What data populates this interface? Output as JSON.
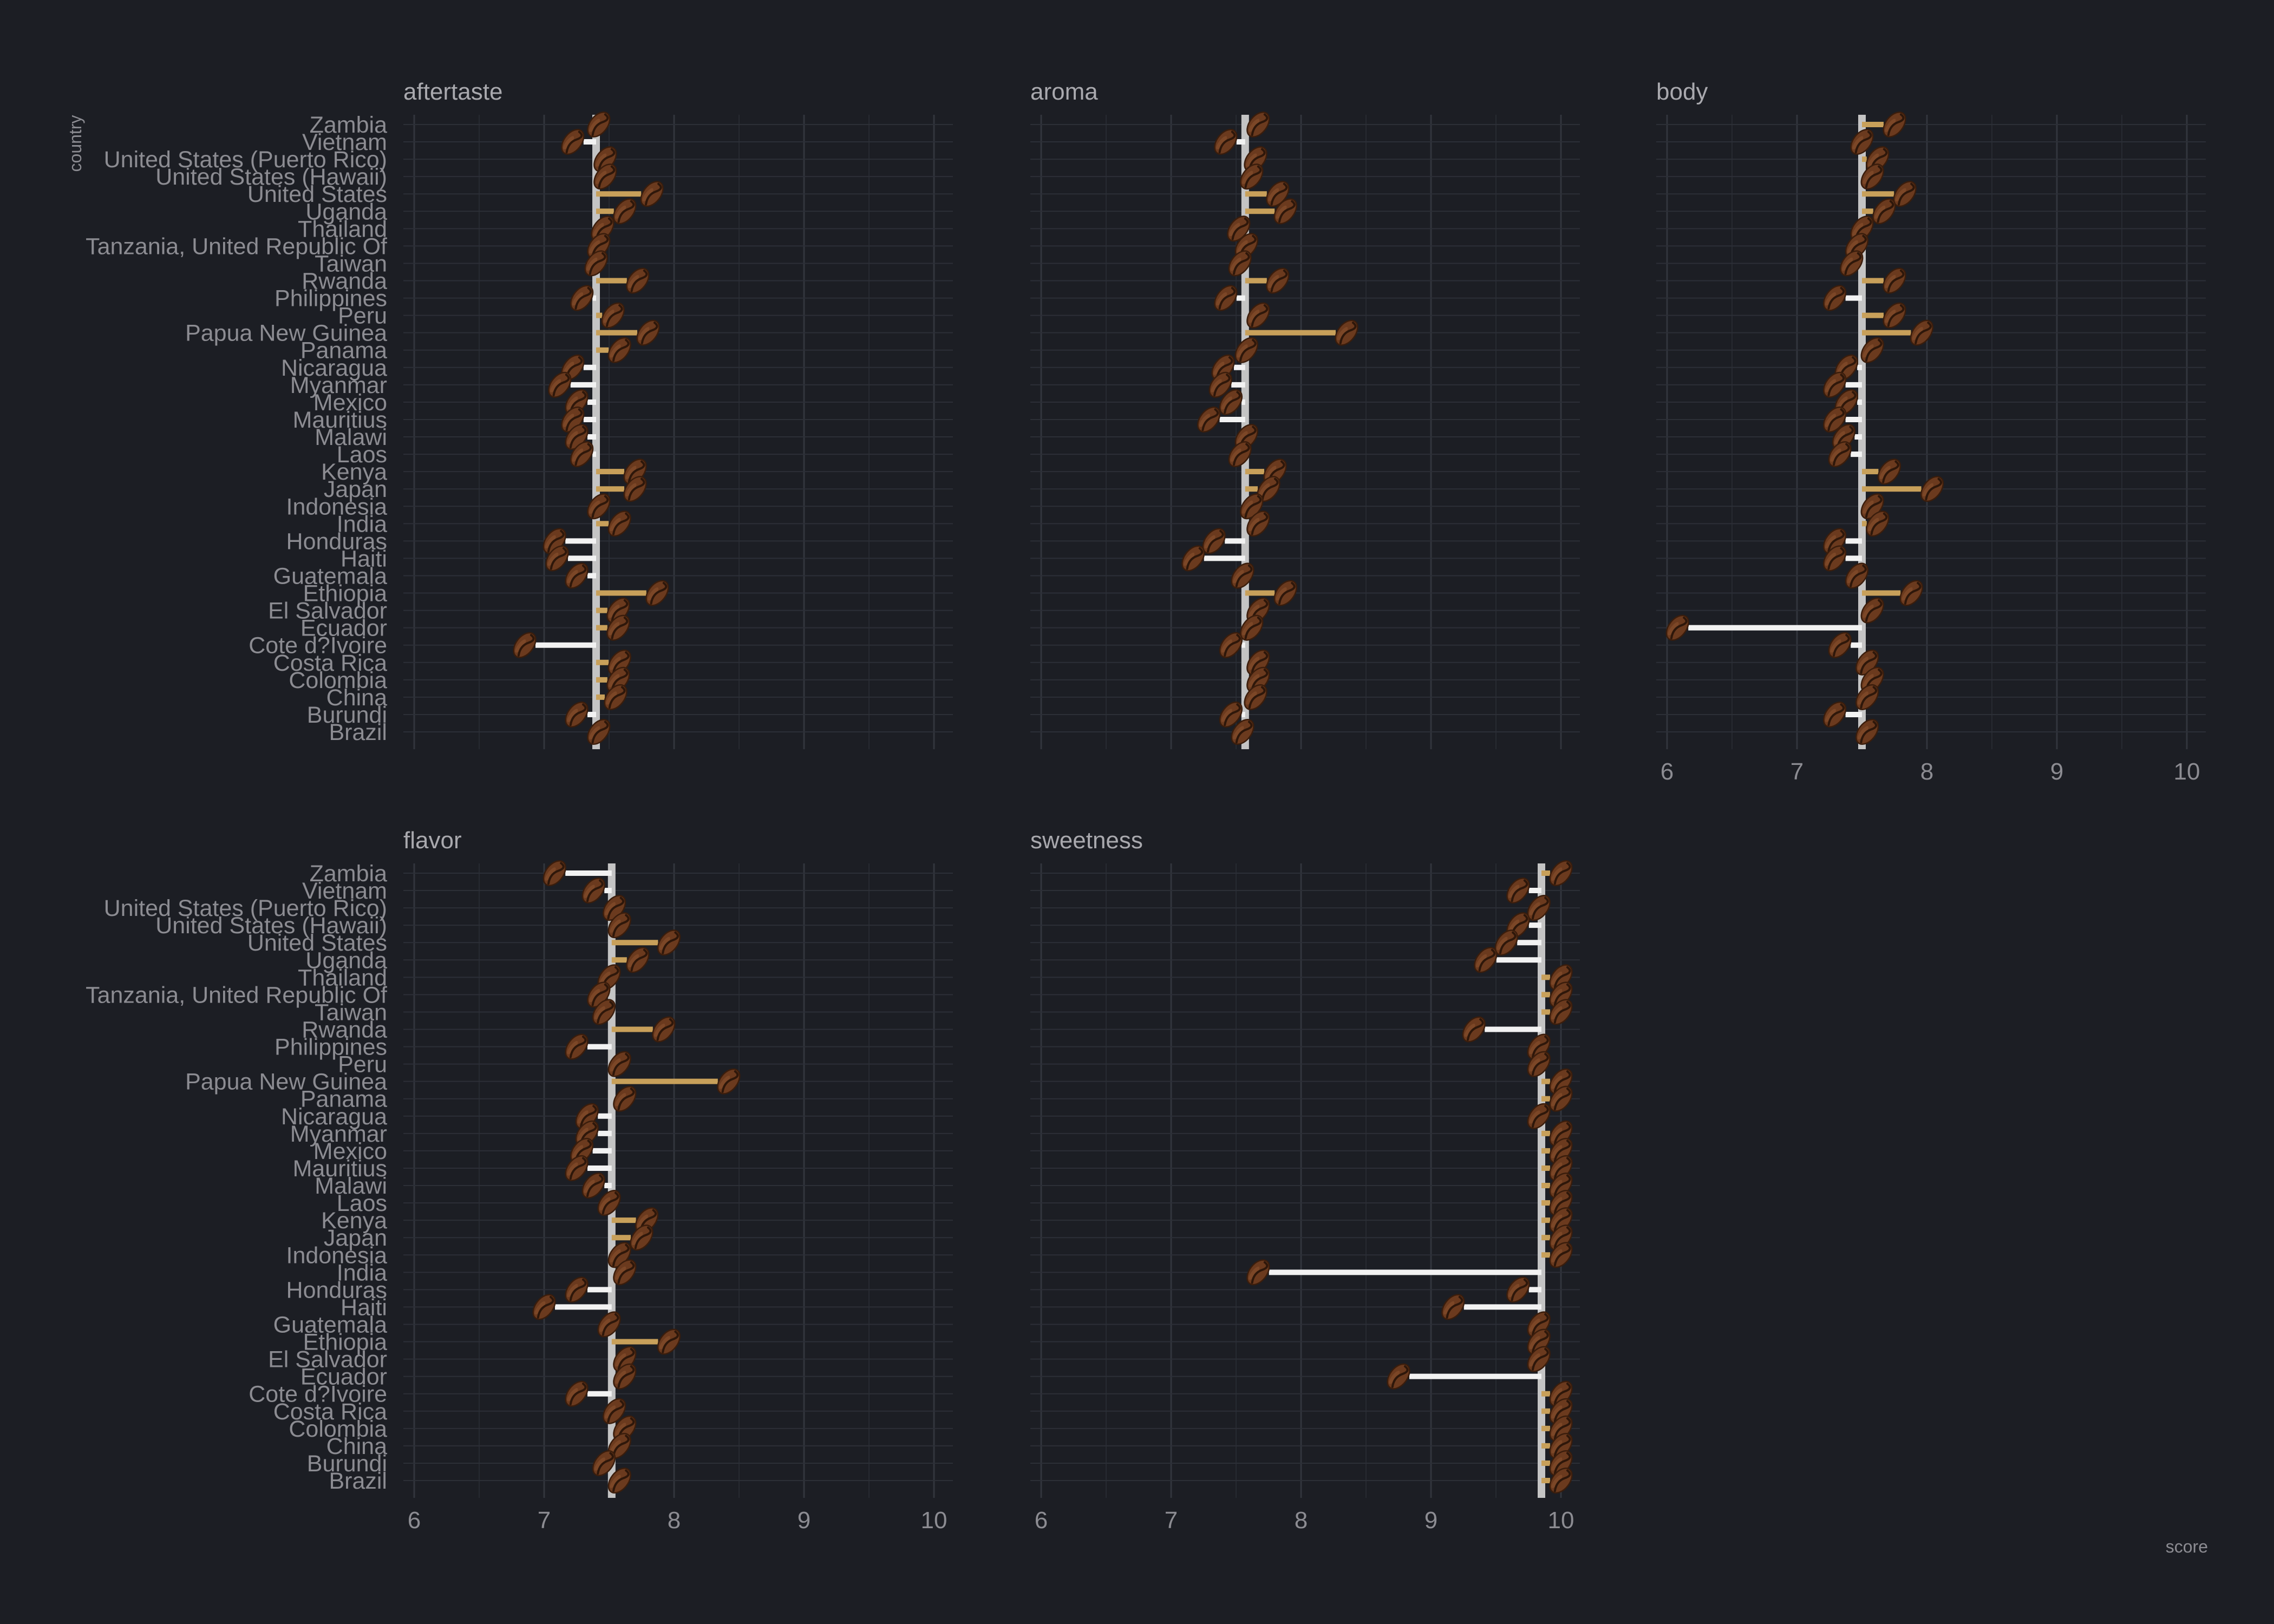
{
  "chart_data": {
    "type": "lollipop-facet",
    "xlabel": "score",
    "ylabel": "country",
    "xlim": [
      6,
      10
    ],
    "x_ticks": [
      6,
      7,
      8,
      9,
      10
    ],
    "grid": true,
    "countries": [
      "Zambia",
      "Vietnam",
      "United States (Puerto Rico)",
      "United States (Hawaii)",
      "United States",
      "Uganda",
      "Thailand",
      "Tanzania, United Republic Of",
      "Taiwan",
      "Rwanda",
      "Philippines",
      "Peru",
      "Papua New Guinea",
      "Panama",
      "Nicaragua",
      "Myanmar",
      "Mexico",
      "Mauritius",
      "Malawi",
      "Laos",
      "Kenya",
      "Japan",
      "Indonesia",
      "India",
      "Honduras",
      "Haiti",
      "Guatemala",
      "Ethiopia",
      "El Salvador",
      "Ecuador",
      "Cote d?Ivoire",
      "Costa Rica",
      "Colombia",
      "China",
      "Burundi",
      "Brazil"
    ],
    "colors": {
      "background": "#1c1e24",
      "above_mean": "#c8a05a",
      "below_mean": "#f2f2f2",
      "mean_line": "#c4c4c4",
      "bean_body": "#6b3a1e",
      "bean_crease": "#2e170a"
    },
    "panels": [
      {
        "name": "aftertaste",
        "mean": 7.4,
        "values": [
          7.42,
          7.22,
          7.47,
          7.47,
          7.83,
          7.62,
          7.45,
          7.42,
          7.4,
          7.72,
          7.29,
          7.53,
          7.8,
          7.58,
          7.22,
          7.12,
          7.25,
          7.22,
          7.25,
          7.29,
          7.7,
          7.7,
          7.42,
          7.58,
          7.08,
          7.1,
          7.25,
          7.87,
          7.57,
          7.57,
          6.85,
          7.58,
          7.57,
          7.55,
          7.25,
          7.42
        ]
      },
      {
        "name": "aroma",
        "mean": 7.57,
        "values": [
          7.67,
          7.42,
          7.65,
          7.62,
          7.82,
          7.88,
          7.52,
          7.58,
          7.53,
          7.82,
          7.42,
          7.67,
          8.35,
          7.58,
          7.4,
          7.38,
          7.46,
          7.29,
          7.58,
          7.53,
          7.8,
          7.75,
          7.62,
          7.67,
          7.33,
          7.17,
          7.55,
          7.88,
          7.67,
          7.62,
          7.46,
          7.67,
          7.67,
          7.65,
          7.46,
          7.55
        ]
      },
      {
        "name": "body",
        "mean": 7.5,
        "values": [
          7.75,
          7.5,
          7.62,
          7.58,
          7.83,
          7.67,
          7.5,
          7.46,
          7.42,
          7.75,
          7.29,
          7.75,
          7.96,
          7.58,
          7.38,
          7.29,
          7.38,
          7.29,
          7.36,
          7.33,
          7.71,
          8.04,
          7.58,
          7.62,
          7.29,
          7.29,
          7.46,
          7.88,
          7.58,
          6.08,
          7.33,
          7.54,
          7.58,
          7.54,
          7.29,
          7.54
        ]
      },
      {
        "name": "flavor",
        "mean": 7.52,
        "values": [
          7.08,
          7.38,
          7.54,
          7.58,
          7.96,
          7.72,
          7.5,
          7.42,
          7.46,
          7.92,
          7.25,
          7.58,
          8.42,
          7.62,
          7.33,
          7.33,
          7.29,
          7.25,
          7.38,
          7.5,
          7.79,
          7.75,
          7.58,
          7.62,
          7.25,
          7.0,
          7.5,
          7.96,
          7.62,
          7.62,
          7.25,
          7.54,
          7.62,
          7.58,
          7.46,
          7.58
        ]
      },
      {
        "name": "sweetness",
        "mean": 9.85,
        "values": [
          10.0,
          9.67,
          9.83,
          9.67,
          9.58,
          9.42,
          10.0,
          10.0,
          10.0,
          9.33,
          9.83,
          9.83,
          10.0,
          10.0,
          9.83,
          10.0,
          10.0,
          10.0,
          10.0,
          10.0,
          10.0,
          10.0,
          10.0,
          7.67,
          9.67,
          9.17,
          9.83,
          9.83,
          9.83,
          8.75,
          10.0,
          10.0,
          10.0,
          10.0,
          10.0,
          10.0
        ]
      }
    ]
  }
}
